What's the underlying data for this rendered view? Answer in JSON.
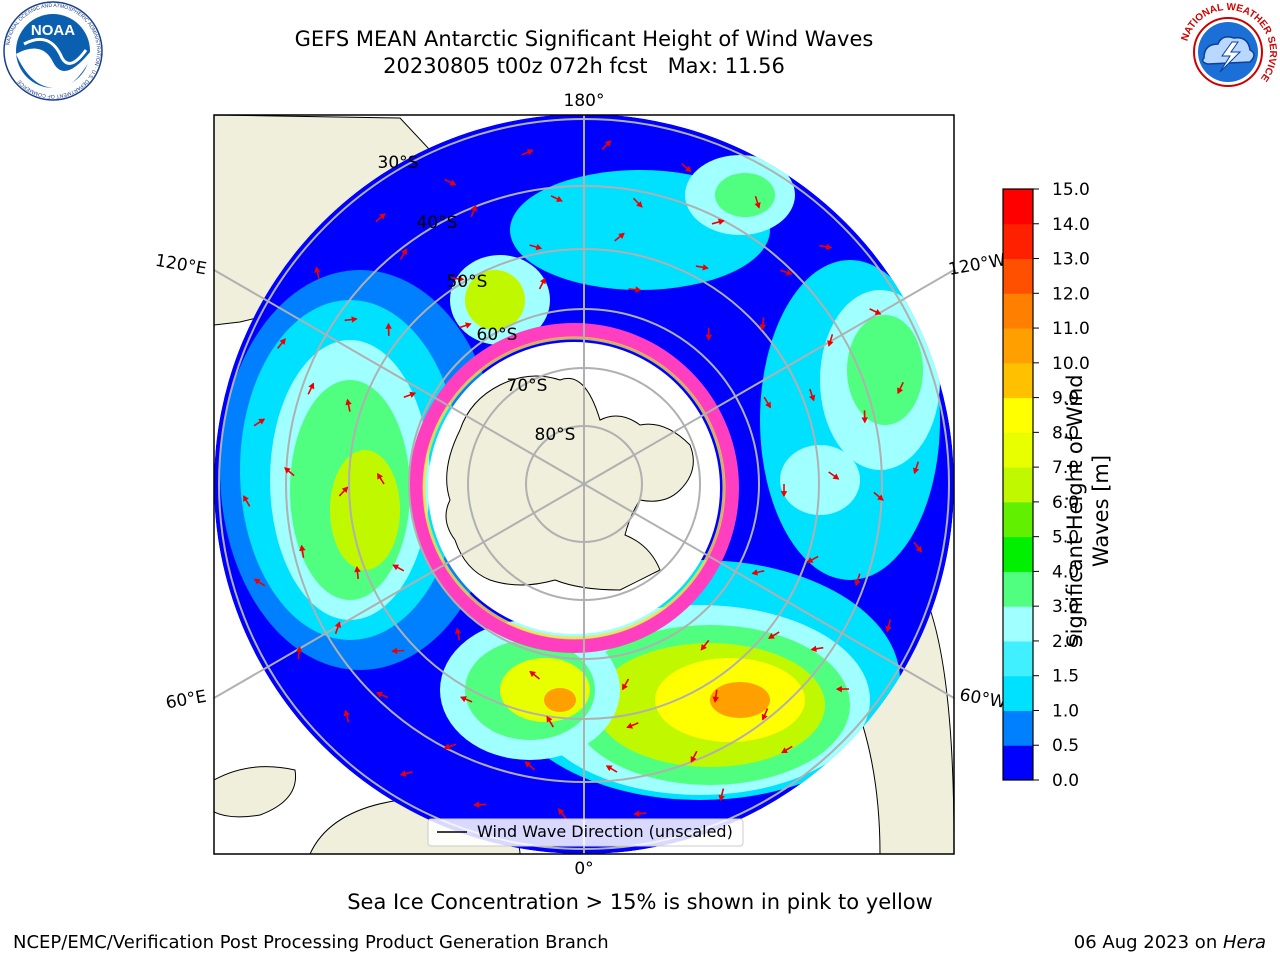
{
  "header": {
    "title_line1": "GEFS MEAN Antarctic Significant Height of Wind Waves",
    "title_line2": "20230805 t00z 072h fcst   Max: 11.56"
  },
  "logos": {
    "left": "noaa-logo",
    "right": "nws-logo",
    "left_text": "NOAA",
    "left_ring": "NATIONAL OCEANIC AND ATMOSPHERIC ADMINISTRATION · U.S. DEPARTMENT OF COMMERCE",
    "right_ring": "NATIONAL WEATHER SERVICE"
  },
  "map": {
    "projection": "south polar stereographic",
    "lon_labels": [
      "180°",
      "120°E",
      "120°W",
      "60°E",
      "60°W",
      "0°"
    ],
    "lat_labels": [
      "30°S",
      "40°S",
      "50°S",
      "60°S",
      "70°S",
      "80°S"
    ],
    "legend": "Wind Wave Direction (unscaled)",
    "colors": {
      "land": "#efefdc",
      "sea_ice_low": "#ff3fbf",
      "sea_ice_high": "#ffdf3f",
      "arrows": "#ee0000",
      "grid": "#b0b0b0"
    }
  },
  "colorbar": {
    "label_line1": "Significant Height of Wind",
    "label_line2": "Waves [m]",
    "ticks": [
      "15.0",
      "14.0",
      "13.0",
      "12.0",
      "11.0",
      "10.0",
      "9.0",
      "8.0",
      "7.0",
      "6.0",
      "5.0",
      "4.0",
      "3.0",
      "2.0",
      "1.5",
      "1.0",
      "0.5",
      "0.0"
    ],
    "colors": [
      "#0000ff",
      "#0080ff",
      "#00e0ff",
      "#40f0ff",
      "#a0ffff",
      "#50ff80",
      "#00f000",
      "#60f000",
      "#c0f800",
      "#e8ff00",
      "#ffff00",
      "#ffc000",
      "#ffa000",
      "#ff8000",
      "#ff5000",
      "#ff2000",
      "#ff0000"
    ]
  },
  "footer": {
    "note": "Sea Ice Concentration > 15% is shown in pink to yellow",
    "left": "NCEP/EMC/Verification Post Processing Product Generation Branch",
    "right_prefix": "06 Aug 2023 on ",
    "right_host": "Hera"
  }
}
